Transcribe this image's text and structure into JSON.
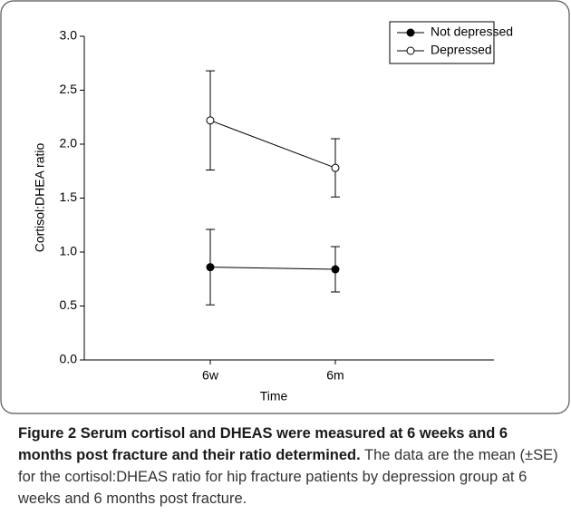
{
  "chart_data": {
    "type": "line",
    "y_label": "Cortisol:DHEA ratio",
    "x_label": "Time",
    "categories": [
      "6w",
      "6m"
    ],
    "series": [
      {
        "name": "Not depressed",
        "color": "#000000",
        "marker_fill": "#000000",
        "values": [
          0.86,
          0.84
        ],
        "errors": [
          0.35,
          0.21
        ]
      },
      {
        "name": "Depressed",
        "color": "#000000",
        "marker_fill": "#ffffff",
        "values": [
          2.22,
          1.78
        ],
        "errors": [
          0.46,
          0.27
        ]
      }
    ],
    "ylim": [
      0,
      3
    ],
    "yticks": [
      {
        "value": 0,
        "label": "0.0"
      },
      0.5,
      {
        "value": 1,
        "label": "1.0"
      },
      1.5,
      {
        "value": 2,
        "label": "2.0"
      },
      2.5,
      {
        "value": 3,
        "label": "3.0"
      }
    ],
    "legend": "upper-right"
  },
  "caption": {
    "title": "Figure 2 Serum cortisol and DHEAS were measured at 6 weeks and 6 months post fracture and their ratio determined.",
    "text": "The data are the mean (±SE) for the cortisol:DHEAS ratio for hip fracture patients by depression group at 6 weeks and 6 months post fracture."
  }
}
